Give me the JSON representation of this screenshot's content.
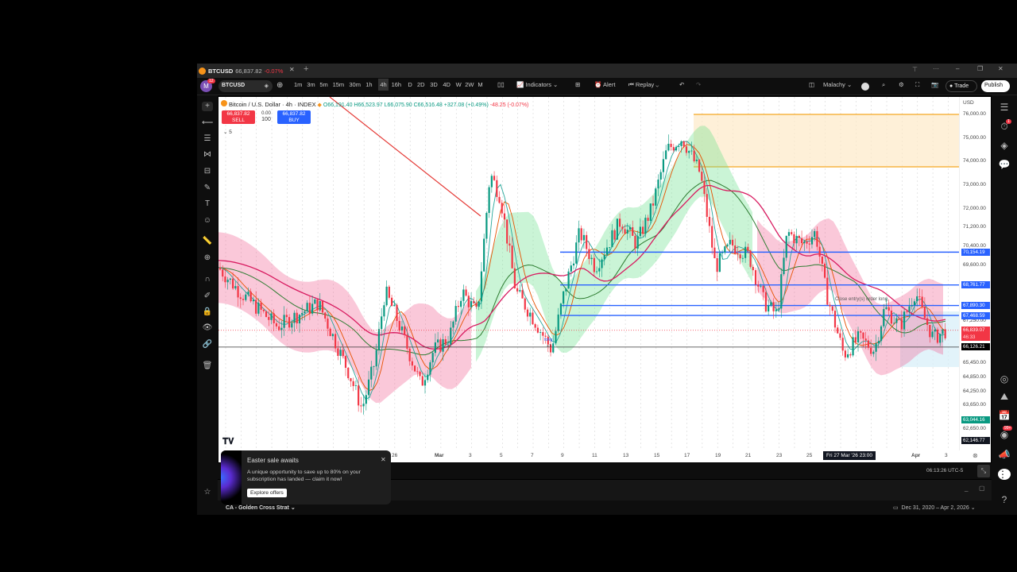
{
  "titlebar": {
    "tab_symbol": "BTCUSD",
    "tab_price": "66,837.82",
    "tab_change": "-0.07%",
    "close": "✕",
    "new_tab": "+"
  },
  "toolbar": {
    "avatar": "M",
    "avatar_badge": "12",
    "symbol": "BTCUSD",
    "intervals": [
      "1m",
      "3m",
      "5m",
      "15m",
      "30m",
      "1h",
      "4h",
      "16h",
      "D",
      "2D",
      "3D",
      "4D",
      "W",
      "2W",
      "M"
    ],
    "active_interval": "4h",
    "indicators": "Indicators",
    "alert": "Alert",
    "replay": "Replay",
    "layout_name": "Malachy",
    "trade": "Trade",
    "publish": "Publish"
  },
  "legend": {
    "title": "Bitcoin / U.S. Dollar · 4h · INDEX",
    "o": "O66,191.40",
    "h": "H66,523.97",
    "l": "L66,075.90",
    "c": "C66,516.48",
    "chg": "+327.08 (+0.49%)",
    "chg2": "-48.25 (-0.07%)",
    "sell_price": "66,837.82",
    "sell": "SELL",
    "spread": "0.00",
    "qty": "100",
    "buy_price": "66,837.82",
    "buy": "BUY",
    "collapse": "5"
  },
  "price_axis": {
    "currency": "USD",
    "labels": [
      "76,000.00",
      "75,000.00",
      "74,000.00",
      "73,000.00",
      "72,000.00",
      "71,200.00",
      "70,400.00",
      "69,600.00",
      "67,250.00",
      "65,450.00",
      "64,850.00",
      "64,250.00",
      "63,650.00",
      "62,650.00"
    ],
    "tags": [
      {
        "value": "70,154.19",
        "color": "#2962ff"
      },
      {
        "value": "68,761.77",
        "color": "#2962ff"
      },
      {
        "value": "67,890.30",
        "color": "#2962ff"
      },
      {
        "value": "67,468.59",
        "color": "#2962ff"
      },
      {
        "value": "66,839.07",
        "color": "#f23645"
      },
      {
        "value": "66,126.21",
        "color": "#000000"
      },
      {
        "value": "63,044.16",
        "color": "#089981"
      },
      {
        "value": "62,146.77",
        "color": "#131722"
      }
    ],
    "countdown": "46:33"
  },
  "time_axis": {
    "labels": [
      "26",
      "Mar",
      "3",
      "5",
      "7",
      "9",
      "11",
      "13",
      "15",
      "17",
      "19",
      "21",
      "23",
      "25",
      "Apr",
      "3"
    ],
    "crosshair": "Fri 27 Mar '26  23:00"
  },
  "annotations": {
    "close_entry": "Close entry(s) order long",
    "long": "long",
    "plus1": "+1"
  },
  "chart_data": {
    "type": "candlestick",
    "approximate": true,
    "ylim": [
      62146,
      76000
    ],
    "close_path": [
      [
        "2026-02-14T16:00",
        69500
      ],
      [
        "2026-02-16T00:00",
        68500
      ],
      [
        "2026-02-18T12:00",
        67000
      ],
      [
        "2026-02-21T04:00",
        68000
      ],
      [
        "2026-02-23T04:00",
        65000
      ],
      [
        "2026-02-24T00:00",
        63500
      ],
      [
        "2026-02-24T20:00",
        65500
      ],
      [
        "2026-02-25T12:00",
        68500
      ],
      [
        "2026-02-26T04:00",
        67500
      ],
      [
        "2026-02-27T20:00",
        64500
      ],
      [
        "2026-02-28T16:00",
        66000
      ],
      [
        "2026-03-01T16:00",
        66500
      ],
      [
        "2026-03-02T12:00",
        68500
      ],
      [
        "2026-03-03T12:00",
        67500
      ],
      [
        "2026-03-04T08:00",
        73500
      ],
      [
        "2026-03-05T00:00",
        72500
      ],
      [
        "2026-03-06T00:00",
        68500
      ],
      [
        "2026-03-07T00:00",
        67500
      ],
      [
        "2026-03-08T08:00",
        66000
      ],
      [
        "2026-03-09T04:00",
        68500
      ],
      [
        "2026-03-10T04:00",
        71000
      ],
      [
        "2026-03-11T04:00",
        69500
      ],
      [
        "2026-03-12T20:00",
        71500
      ],
      [
        "2026-03-13T20:00",
        70500
      ],
      [
        "2026-03-14T20:00",
        72000
      ],
      [
        "2026-03-15T20:00",
        74500
      ],
      [
        "2026-03-16T20:00",
        75000
      ],
      [
        "2026-03-18T00:00",
        73500
      ],
      [
        "2026-03-19T00:00",
        69500
      ],
      [
        "2026-03-20T00:00",
        70500
      ],
      [
        "2026-03-21T04:00",
        70000
      ],
      [
        "2026-03-22T04:00",
        68000
      ],
      [
        "2026-03-23T00:00",
        67500
      ],
      [
        "2026-03-23T16:00",
        71000
      ],
      [
        "2026-03-24T16:00",
        70500
      ],
      [
        "2026-03-25T12:00",
        71000
      ],
      [
        "2026-03-26T04:00",
        68500
      ],
      [
        "2026-03-27T08:00",
        65800
      ],
      [
        "2026-03-28T08:00",
        66500
      ],
      [
        "2026-03-29T08:00",
        66000
      ],
      [
        "2026-03-30T00:00",
        67800
      ],
      [
        "2026-03-31T00:00",
        67000
      ],
      [
        "2026-04-01T00:00",
        68500
      ],
      [
        "2026-04-01T12:00",
        67500
      ],
      [
        "2026-04-02T04:00",
        66500
      ],
      [
        "2026-04-03T00:00",
        66837
      ]
    ],
    "horizontal_levels": [
      70154.19,
      68761.77,
      67890.3,
      67468.59,
      66126.21
    ],
    "colors": {
      "up": "#089981",
      "down": "#f23645",
      "level": "#2962ff",
      "box": "#f5a623"
    }
  },
  "bottom": {
    "clock": "06:13:26 UTC-5",
    "strategy": "CA - Golden Cross Strat",
    "date_range": "Dec 31, 2020 – Apr 2, 2026"
  },
  "toast": {
    "title": "Easter sale awaits",
    "body": "A unique opportunity to save up to 80% on your subscription has landed — claim it now!",
    "button": "Explore offers"
  },
  "sidebar_badges": {
    "alerts": "1",
    "notifications": "99+"
  }
}
